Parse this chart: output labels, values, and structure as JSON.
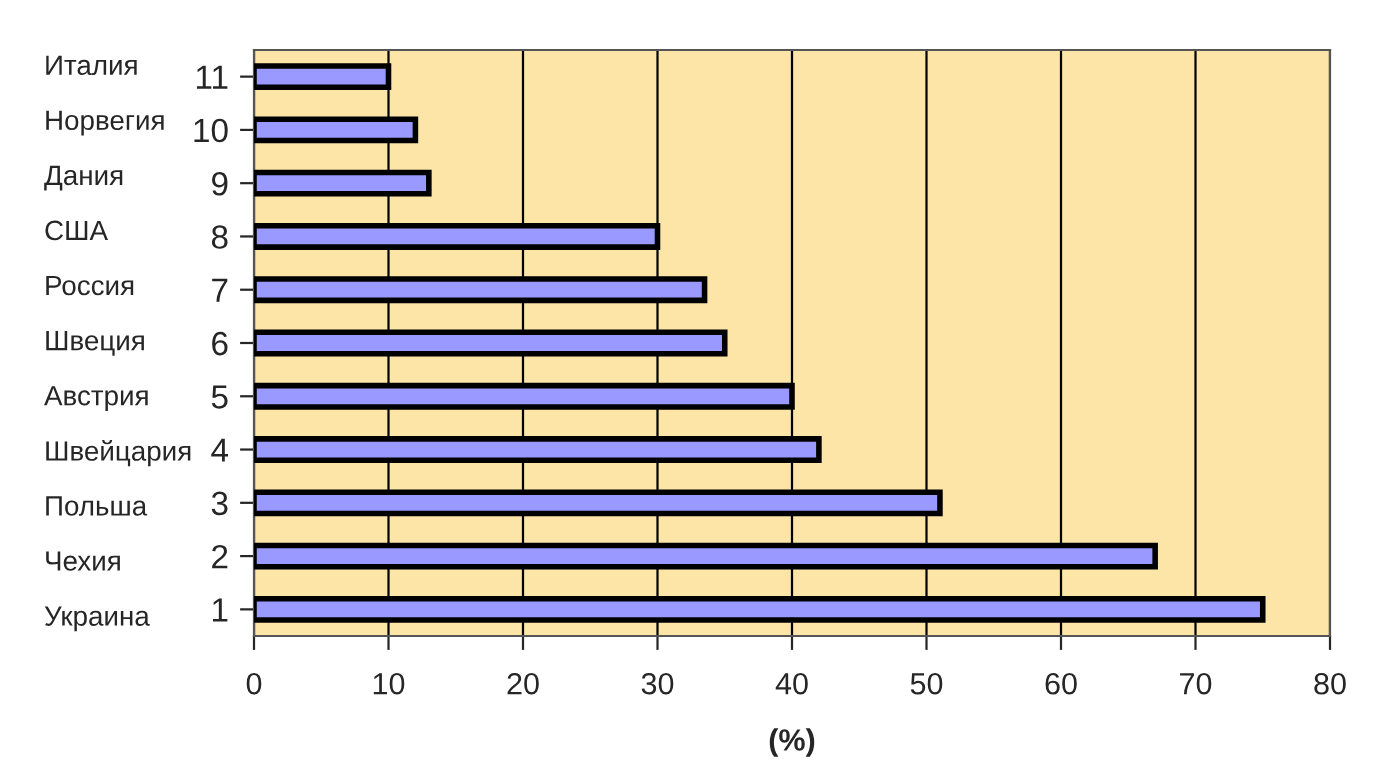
{
  "chart_data": {
    "type": "bar",
    "orientation": "horizontal",
    "xlabel": "(%)",
    "categories": [
      "11",
      "10",
      "9",
      "8",
      "7",
      "6",
      "5",
      "4",
      "3",
      "2",
      "1"
    ],
    "values": [
      10,
      12,
      13,
      30,
      33.5,
      35,
      40,
      42,
      51,
      67,
      75
    ],
    "color": "#9999ff",
    "xlim": [
      0,
      80
    ],
    "xticks": [
      0,
      10,
      20,
      30,
      40,
      50,
      60,
      70,
      80
    ],
    "grid": "x",
    "annotations": [
      "Италия",
      "Норвегия",
      "Дания",
      "США",
      "Россия",
      "Швеция",
      "Австрия",
      "Швейцария",
      "Польша",
      "Чехия",
      "Украина"
    ]
  }
}
